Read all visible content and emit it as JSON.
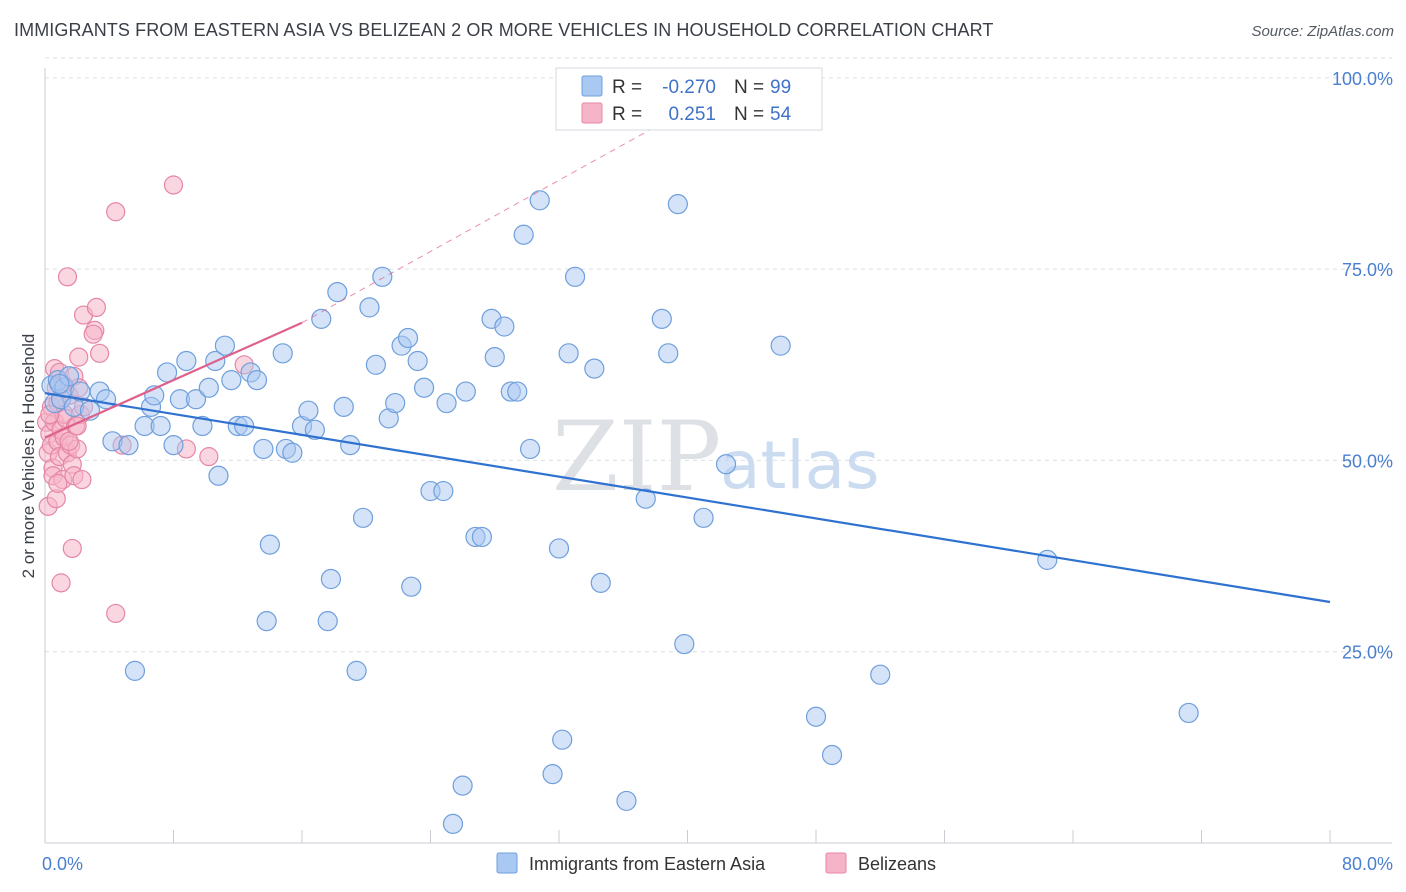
{
  "header": {
    "title": "IMMIGRANTS FROM EASTERN ASIA VS BELIZEAN 2 OR MORE VEHICLES IN HOUSEHOLD CORRELATION CHART",
    "source": "Source: ZipAtlas.com"
  },
  "watermark": {
    "zip": "ZIP",
    "atlas": "atlas"
  },
  "stats": [
    {
      "r_label": "R =",
      "r_value": "-0.270",
      "n_label": "N =",
      "n_value": "99",
      "color": "#a9c8f2"
    },
    {
      "r_label": "R =",
      "r_value": "0.251",
      "n_label": "N =",
      "n_value": "54",
      "color": "#f6b4c9"
    }
  ],
  "legend": [
    {
      "label": "Immigrants from Eastern Asia",
      "color": "#a9c8f2"
    },
    {
      "label": "Belizeans",
      "color": "#f6b4c9"
    }
  ],
  "colors": {
    "blue_fill": "#a9c8f2",
    "blue_stroke": "#6f9fdc",
    "blue_line": "#2f72d0",
    "pink_fill": "#f6b4c9",
    "pink_stroke": "#e586a6",
    "pink_line": "#e0608c",
    "grid": "#dcdfe4",
    "axis_text": "#4a7fd0"
  },
  "chart_data": {
    "type": "scatter",
    "title": "IMMIGRANTS FROM EASTERN ASIA VS BELIZEAN 2 OR MORE VEHICLES IN HOUSEHOLD CORRELATION CHART",
    "xlabel": "",
    "ylabel": "2 or more Vehicles in Household",
    "xlim": [
      0,
      80
    ],
    "ylim": [
      0,
      103
    ],
    "x_tick_labels": [
      "0.0%",
      "80.0%"
    ],
    "y_ticks": [
      25,
      50,
      75,
      100
    ],
    "y_tick_labels": [
      "25.0%",
      "50.0%",
      "75.0%",
      "100.0%"
    ],
    "grid": true,
    "legend_position": "bottom-center",
    "series": [
      {
        "name": "Immigrants from Eastern Asia",
        "color": "#a9c8f2",
        "trend": {
          "x": [
            0,
            80
          ],
          "y": [
            58.8,
            31.5
          ],
          "dashed_extension": false
        },
        "points": [
          [
            0.4,
            59.8
          ],
          [
            0.6,
            57.5
          ],
          [
            0.8,
            60.5
          ],
          [
            1.0,
            58.0
          ],
          [
            1.2,
            59.5
          ],
          [
            1.5,
            61.0
          ],
          [
            1.8,
            57.0
          ],
          [
            2.2,
            59.0
          ],
          [
            2.8,
            56.5
          ],
          [
            3.4,
            59.0
          ],
          [
            3.8,
            58.0
          ],
          [
            4.2,
            52.5
          ],
          [
            5.2,
            52.0
          ],
          [
            5.6,
            22.5
          ],
          [
            6.2,
            54.5
          ],
          [
            6.6,
            57.0
          ],
          [
            6.8,
            58.5
          ],
          [
            7.2,
            54.5
          ],
          [
            7.6,
            61.5
          ],
          [
            8.0,
            52.0
          ],
          [
            8.4,
            58.0
          ],
          [
            8.8,
            63.0
          ],
          [
            9.4,
            58.0
          ],
          [
            9.8,
            54.5
          ],
          [
            10.2,
            59.5
          ],
          [
            10.6,
            63.0
          ],
          [
            10.8,
            48.0
          ],
          [
            11.2,
            65.0
          ],
          [
            11.6,
            60.5
          ],
          [
            12.0,
            54.5
          ],
          [
            12.4,
            54.5
          ],
          [
            12.8,
            61.5
          ],
          [
            13.2,
            60.5
          ],
          [
            13.6,
            51.5
          ],
          [
            13.8,
            29.0
          ],
          [
            14.0,
            39.0
          ],
          [
            14.8,
            64.0
          ],
          [
            15.0,
            51.5
          ],
          [
            15.4,
            51.0
          ],
          [
            16.0,
            54.5
          ],
          [
            16.4,
            56.5
          ],
          [
            16.8,
            54.0
          ],
          [
            17.2,
            68.5
          ],
          [
            17.6,
            29.0
          ],
          [
            17.8,
            34.5
          ],
          [
            18.2,
            72.0
          ],
          [
            18.6,
            57.0
          ],
          [
            19.0,
            52.0
          ],
          [
            19.4,
            22.5
          ],
          [
            19.8,
            42.5
          ],
          [
            20.2,
            70.0
          ],
          [
            20.6,
            62.5
          ],
          [
            21.0,
            74.0
          ],
          [
            21.4,
            55.5
          ],
          [
            21.8,
            57.5
          ],
          [
            22.2,
            65.0
          ],
          [
            22.6,
            66.0
          ],
          [
            22.8,
            33.5
          ],
          [
            23.2,
            63.0
          ],
          [
            23.6,
            59.5
          ],
          [
            24.0,
            46.0
          ],
          [
            24.8,
            46.0
          ],
          [
            25.0,
            57.5
          ],
          [
            25.4,
            2.5
          ],
          [
            26.0,
            7.5
          ],
          [
            26.2,
            59.0
          ],
          [
            26.8,
            40.0
          ],
          [
            27.2,
            40.0
          ],
          [
            27.8,
            68.5
          ],
          [
            28.0,
            63.5
          ],
          [
            28.6,
            67.5
          ],
          [
            29.0,
            59.0
          ],
          [
            29.4,
            59.0
          ],
          [
            29.8,
            79.5
          ],
          [
            30.2,
            51.5
          ],
          [
            30.8,
            84.0
          ],
          [
            31.6,
            9.0
          ],
          [
            32.0,
            38.5
          ],
          [
            32.2,
            13.5
          ],
          [
            32.6,
            64.0
          ],
          [
            33.0,
            74.0
          ],
          [
            34.2,
            62.0
          ],
          [
            34.6,
            34.0
          ],
          [
            36.2,
            5.5
          ],
          [
            37.4,
            45.0
          ],
          [
            38.4,
            68.5
          ],
          [
            38.8,
            64.0
          ],
          [
            39.4,
            83.5
          ],
          [
            39.8,
            26.0
          ],
          [
            41.0,
            42.5
          ],
          [
            42.4,
            49.5
          ],
          [
            43.2,
            100.0
          ],
          [
            45.8,
            65.0
          ],
          [
            48.0,
            16.5
          ],
          [
            49.0,
            11.5
          ],
          [
            52.0,
            22.0
          ],
          [
            62.4,
            37.0
          ],
          [
            71.2,
            17.0
          ],
          [
            0.9,
            60.0
          ]
        ]
      },
      {
        "name": "Belizeans",
        "color": "#f6b4c9",
        "trend": {
          "x": [
            0,
            16
          ],
          "y": [
            53.0,
            68.0
          ],
          "dashed_extension": true,
          "extension_to": [
            43.5,
            100.0
          ]
        },
        "points": [
          [
            0.1,
            55.0
          ],
          [
            0.2,
            51.0
          ],
          [
            0.2,
            44.0
          ],
          [
            0.3,
            53.5
          ],
          [
            0.4,
            57.0
          ],
          [
            0.4,
            52.0
          ],
          [
            0.5,
            49.0
          ],
          [
            0.5,
            48.0
          ],
          [
            0.6,
            62.0
          ],
          [
            0.6,
            55.0
          ],
          [
            0.7,
            45.0
          ],
          [
            0.7,
            59.5
          ],
          [
            0.8,
            52.5
          ],
          [
            0.8,
            57.5
          ],
          [
            0.9,
            50.5
          ],
          [
            0.9,
            61.5
          ],
          [
            1.0,
            54.0
          ],
          [
            1.1,
            47.5
          ],
          [
            1.2,
            56.0
          ],
          [
            1.2,
            53.0
          ],
          [
            1.3,
            55.5
          ],
          [
            1.4,
            51.0
          ],
          [
            1.5,
            58.5
          ],
          [
            1.6,
            52.0
          ],
          [
            1.7,
            49.5
          ],
          [
            1.8,
            48.0
          ],
          [
            1.8,
            61.0
          ],
          [
            1.9,
            54.5
          ],
          [
            2.0,
            51.5
          ],
          [
            2.1,
            63.5
          ],
          [
            2.1,
            59.5
          ],
          [
            2.2,
            56.0
          ],
          [
            2.3,
            47.5
          ],
          [
            2.4,
            57.0
          ],
          [
            1.0,
            34.0
          ],
          [
            1.7,
            38.5
          ],
          [
            2.4,
            69.0
          ],
          [
            3.1,
            67.0
          ],
          [
            3.2,
            70.0
          ],
          [
            3.4,
            64.0
          ],
          [
            1.4,
            74.0
          ],
          [
            4.4,
            30.0
          ],
          [
            4.4,
            82.5
          ],
          [
            4.8,
            52.0
          ],
          [
            8.0,
            86.0
          ],
          [
            8.8,
            51.5
          ],
          [
            10.2,
            50.5
          ],
          [
            12.4,
            62.5
          ],
          [
            0.3,
            56.0
          ],
          [
            0.8,
            47.0
          ],
          [
            1.5,
            52.5
          ],
          [
            2.0,
            54.5
          ],
          [
            3.0,
            66.5
          ],
          [
            1.1,
            60.0
          ]
        ]
      }
    ]
  }
}
